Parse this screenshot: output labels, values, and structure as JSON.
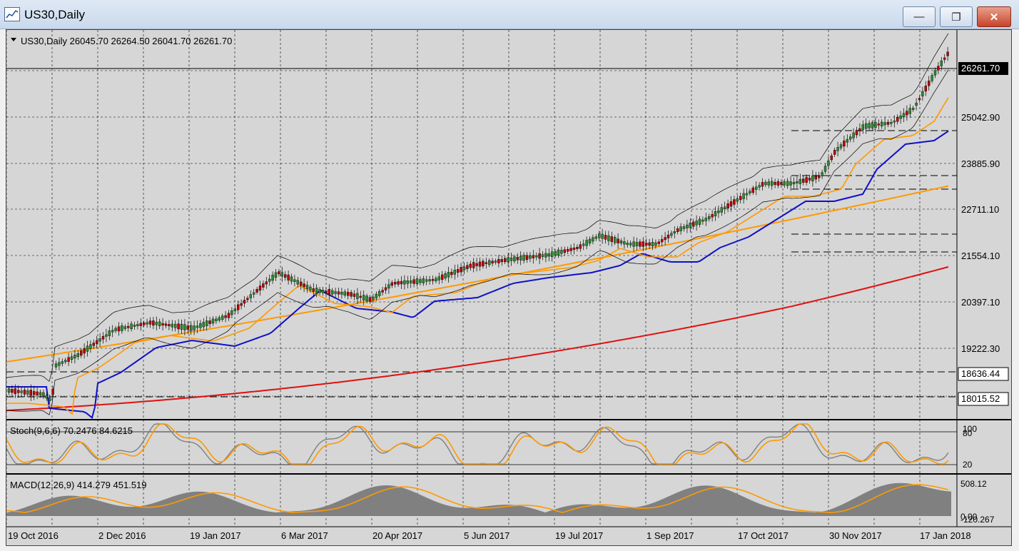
{
  "window": {
    "title": "US30,Daily",
    "minimize_glyph": "—",
    "maximize_glyph": "❐",
    "close_glyph": "✕"
  },
  "main_panel": {
    "header": "US30,Daily  26045.70 26264.50 26041.70 26261.70",
    "price_labels": [
      "25042.90",
      "23885.90",
      "22711.10",
      "21554.10",
      "20397.10",
      "19222.30"
    ],
    "current_price": "26261.70",
    "line_labels": [
      "18636.44",
      "18015.52"
    ]
  },
  "stoch_panel": {
    "header": "Stoch(9,6,6) 70.2476 84.6215",
    "levels": [
      "100",
      "80",
      "20"
    ]
  },
  "macd_panel": {
    "header": "MACD(12,26,9) 414.279 451.519",
    "labels": [
      "508.12",
      "0.00",
      "-120.267"
    ]
  },
  "date_axis": [
    "19 Oct 2016",
    "2 Dec 2016",
    "19 Jan 2017",
    "6 Mar 2017",
    "20 Apr 2017",
    "5 Jun 2017",
    "19 Jul 2017",
    "1 Sep 2017",
    "17 Oct 2017",
    "30 Nov 2017",
    "17 Jan 2018"
  ],
  "colors": {
    "background": "#d6d6d6",
    "grid": "#000000",
    "candle_up": "#2e8b2e",
    "candle_down": "#c00000",
    "ma_fast": "#1010c8",
    "ma_slow": "#e01010",
    "ma_mid": "#ff9900",
    "stoch_main": "#808080",
    "stoch_signal": "#ff9900",
    "macd_hist": "#808080",
    "macd_signal": "#ff9900"
  }
}
